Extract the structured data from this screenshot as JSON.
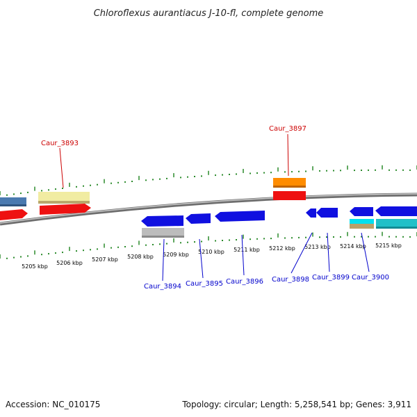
{
  "title": "Chloroflexus aurantiacus J-10-fl, complete genome",
  "footer": {
    "accession": "Accession: NC_010175",
    "stats": "Topology: circular; Length: 5,258,541 bp; Genes: 3,911"
  },
  "colors": {
    "background": "#ffffff",
    "backbone": "#8a8a8a",
    "tick": "#2a8a2a",
    "label_upper": "#cc0000",
    "label_lower": "#0000cc"
  },
  "scale": {
    "labels": [
      "5205 kbp",
      "5206 kbp",
      "5207 kbp",
      "5208 kbp",
      "5209 kbp",
      "5210 kbp",
      "5211 kbp",
      "5212 kbp",
      "5213 kbp",
      "5214 kbp",
      "5215 kbp"
    ]
  },
  "genes": [
    {
      "label": "Caur_3893",
      "strand": "upper",
      "color_name": "light-yellow"
    },
    {
      "label": "Caur_3894",
      "strand": "lower",
      "color_name": "blue"
    },
    {
      "label": "Caur_3895",
      "strand": "lower",
      "color_name": "blue"
    },
    {
      "label": "Caur_3896",
      "strand": "lower",
      "color_name": "blue"
    },
    {
      "label": "Caur_3897",
      "strand": "upper",
      "color_name": "orange"
    },
    {
      "label": "Caur_3898",
      "strand": "lower",
      "color_name": "blue"
    },
    {
      "label": "Caur_3899",
      "strand": "lower",
      "color_name": "blue"
    },
    {
      "label": "Caur_3900",
      "strand": "lower",
      "color_name": "blue"
    }
  ]
}
